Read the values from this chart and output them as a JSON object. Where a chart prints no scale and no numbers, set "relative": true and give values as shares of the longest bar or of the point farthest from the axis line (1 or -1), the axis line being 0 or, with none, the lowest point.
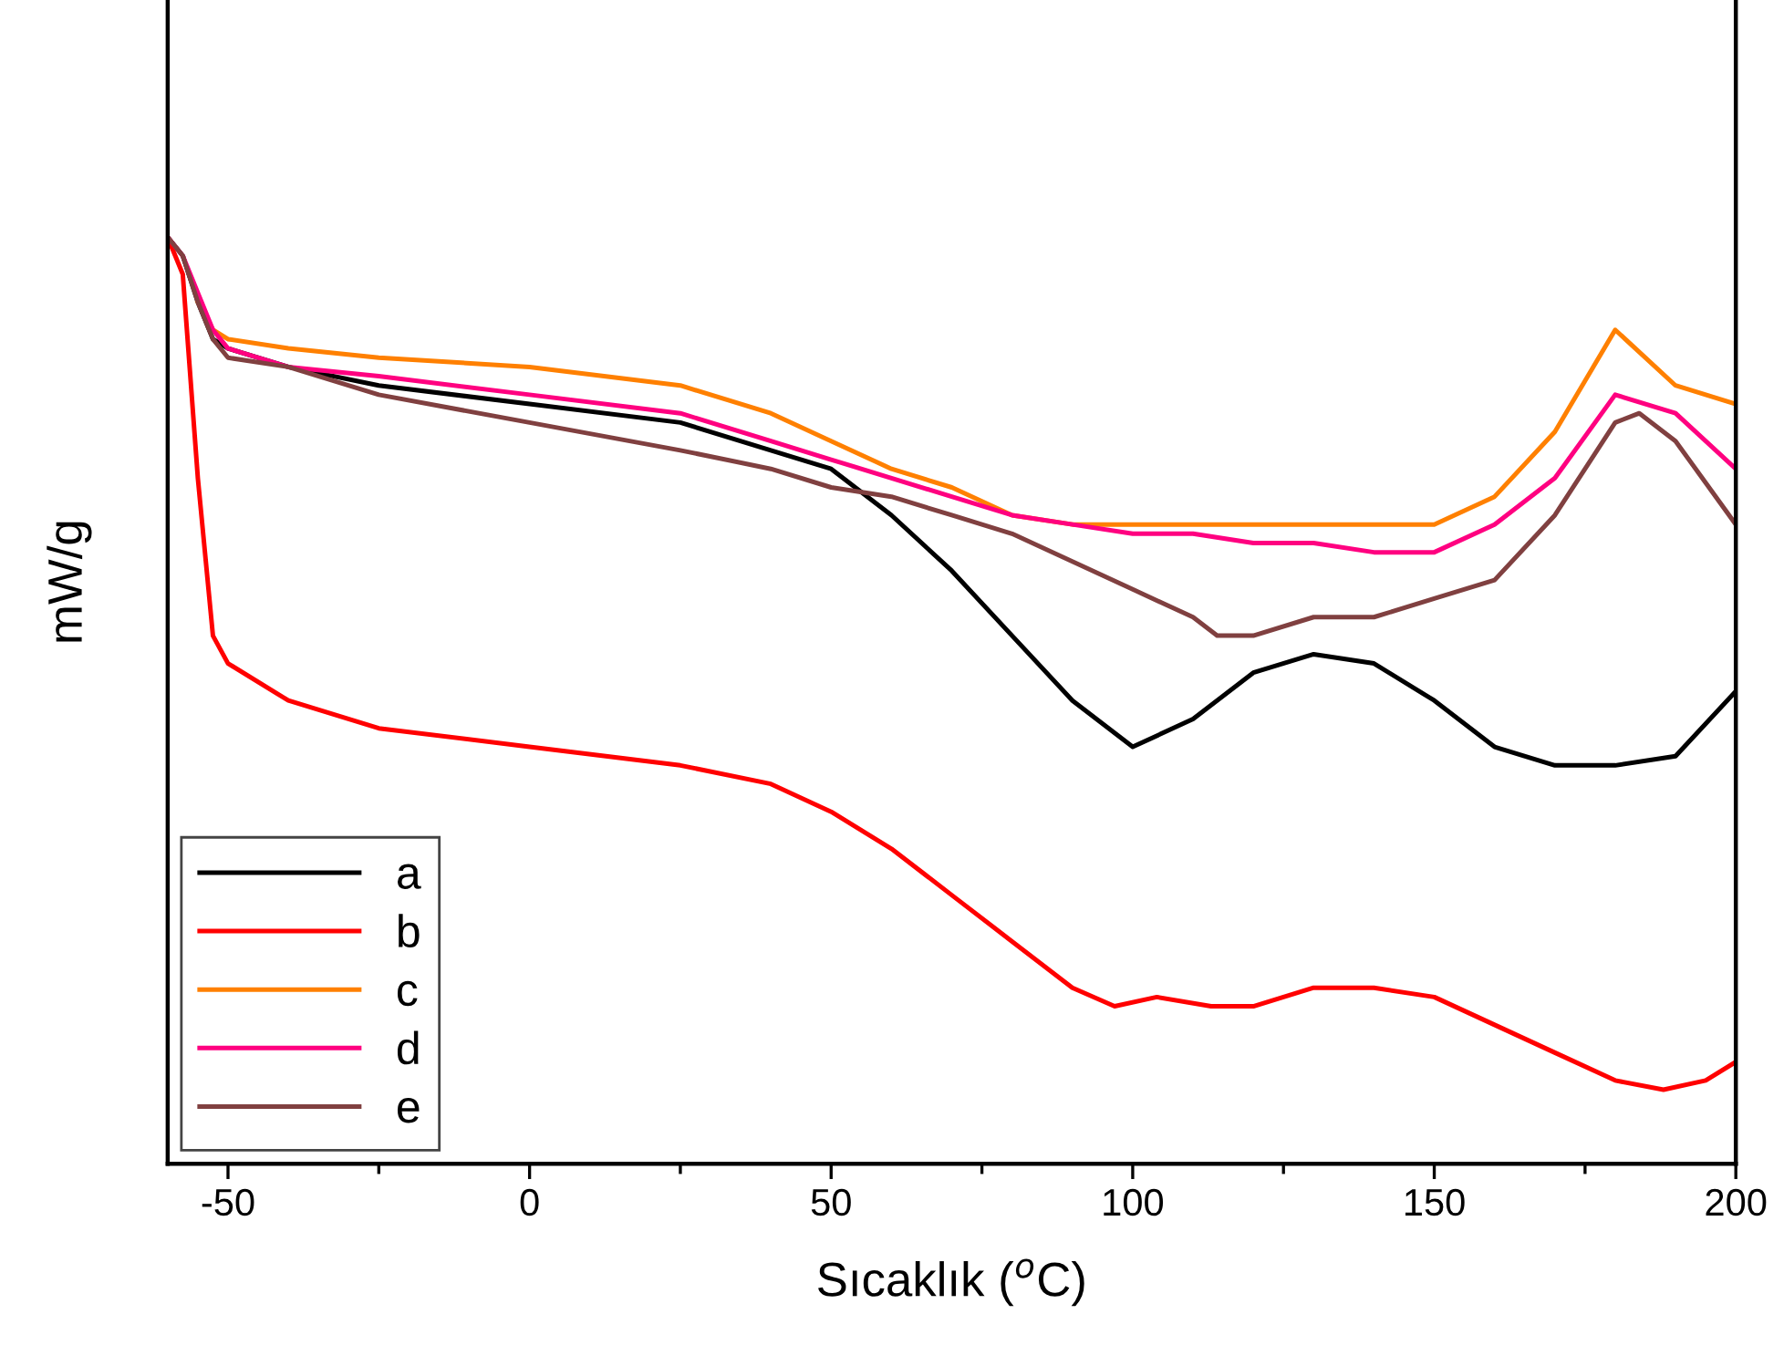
{
  "chart_data": {
    "type": "line",
    "relative": true,
    "xlabel": "Sıcaklık ($^{o}$C)",
    "ylabel": "mW/g",
    "x": [
      -60,
      -57.5,
      -55,
      -52.5,
      -50,
      -40,
      -25,
      0,
      25,
      40,
      50,
      60,
      70,
      80,
      90,
      100,
      110,
      120,
      130,
      140,
      150,
      160,
      170,
      180,
      190,
      200
    ],
    "xlim": [
      -60,
      200
    ],
    "xticks": [
      -50,
      {
        "value": -25,
        "label": null
      },
      0,
      {
        "value": 25,
        "label": null
      },
      50,
      {
        "value": 75,
        "label": null
      },
      100,
      {
        "value": 125,
        "label": null
      },
      150,
      {
        "value": 175,
        "label": null
      },
      200
    ],
    "legend": "bottom left",
    "grid": false,
    "line_style": "solid",
    "marker": "none",
    "series": [
      {
        "name": "a",
        "color": "#000000",
        "values": [
          1.0,
          0.98,
          0.93,
          0.89,
          0.88,
          0.86,
          0.84,
          0.82,
          0.8,
          0.77,
          0.75,
          0.7,
          0.64,
          0.57,
          0.5,
          0.45,
          0.48,
          0.53,
          0.55,
          0.54,
          0.5,
          0.45,
          0.43,
          0.43,
          0.44,
          0.51
        ]
      },
      {
        "name": "b",
        "color": "#ff0000",
        "x": [
          -60,
          -57.5,
          -55,
          -52.5,
          -50,
          -40,
          -25,
          0,
          25,
          40,
          50,
          60,
          70,
          80,
          90,
          97,
          104,
          113,
          120,
          130,
          140,
          150,
          160,
          170,
          180,
          188,
          195,
          200
        ],
        "values": [
          1.0,
          0.96,
          0.74,
          0.57,
          0.54,
          0.5,
          0.47,
          0.45,
          0.43,
          0.41,
          0.38,
          0.34,
          0.29,
          0.24,
          0.19,
          0.17,
          0.18,
          0.17,
          0.17,
          0.19,
          0.19,
          0.18,
          0.15,
          0.12,
          0.09,
          0.08,
          0.09,
          0.11
        ]
      },
      {
        "name": "c",
        "color": "#ff8000",
        "values": [
          null,
          null,
          0.93,
          0.9,
          0.89,
          0.88,
          0.87,
          0.86,
          0.84,
          0.81,
          0.78,
          0.75,
          0.73,
          0.7,
          0.69,
          0.69,
          0.69,
          0.69,
          0.69,
          0.69,
          0.69,
          0.72,
          0.79,
          0.9,
          0.84,
          0.82
        ]
      },
      {
        "name": "d",
        "color": "#ff0080",
        "values": [
          1.0,
          0.98,
          0.94,
          0.9,
          0.88,
          0.86,
          0.85,
          0.83,
          0.81,
          0.78,
          0.76,
          0.74,
          0.72,
          0.7,
          0.69,
          0.68,
          0.68,
          0.67,
          0.67,
          0.66,
          0.66,
          0.69,
          0.74,
          0.83,
          0.81,
          0.75
        ]
      },
      {
        "name": "e",
        "color": "#804040",
        "x": [
          -60,
          -57.5,
          -55,
          -52.5,
          -50,
          -40,
          -25,
          0,
          25,
          40,
          50,
          60,
          70,
          80,
          90,
          100,
          110,
          114,
          120,
          130,
          140,
          150,
          160,
          170,
          180,
          184,
          190,
          200
        ],
        "values": [
          1.0,
          0.98,
          0.93,
          0.89,
          0.87,
          0.86,
          0.83,
          0.8,
          0.77,
          0.75,
          0.73,
          0.72,
          0.7,
          0.68,
          0.65,
          0.62,
          0.59,
          0.57,
          0.57,
          0.59,
          0.59,
          0.61,
          0.63,
          0.7,
          0.8,
          0.81,
          0.78,
          0.69
        ]
      }
    ]
  }
}
